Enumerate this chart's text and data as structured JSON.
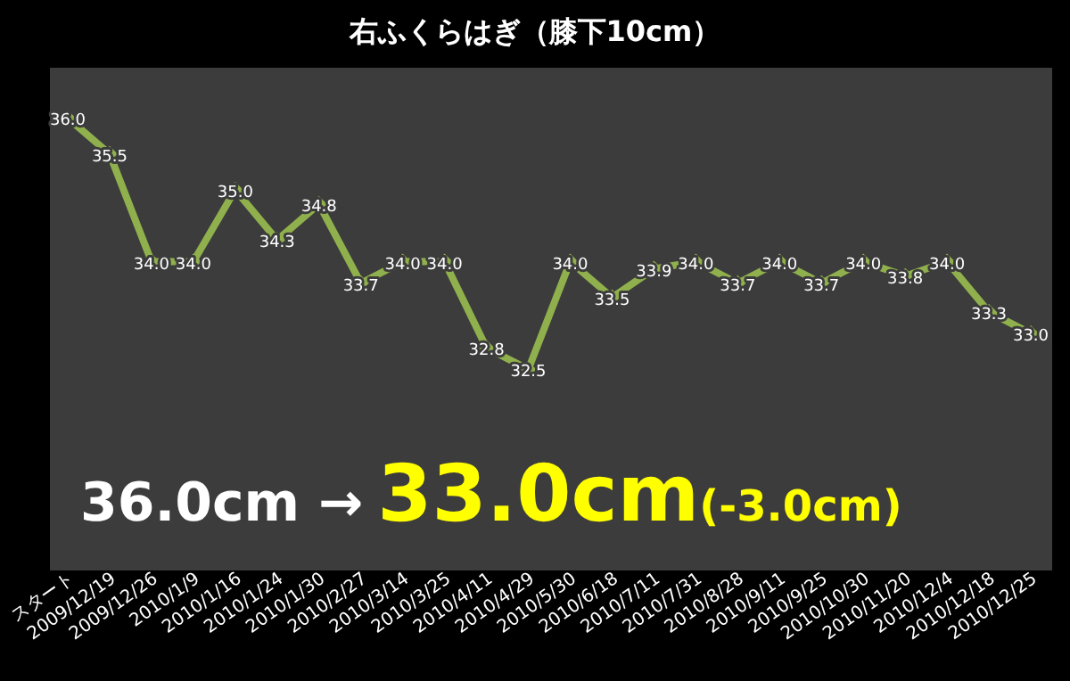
{
  "chart_data": {
    "type": "line",
    "title": "右ふくらはぎ（膝下10cm）",
    "categories": [
      "スタート",
      "2009/12/19",
      "2009/12/26",
      "2010/1/9",
      "2010/1/16",
      "2010/1/24",
      "2010/1/30",
      "2010/2/27",
      "2010/3/14",
      "2010/3/25",
      "2010/4/11",
      "2010/4/29",
      "2010/5/30",
      "2010/6/18",
      "2010/7/11",
      "2010/7/31",
      "2010/8/28",
      "2010/9/11",
      "2010/9/25",
      "2010/10/30",
      "2010/11/20",
      "2010/12/4",
      "2010/12/18",
      "2010/12/25"
    ],
    "series": [
      {
        "color": "#8fb04c",
        "values": [
          36.0,
          35.5,
          34.0,
          34.0,
          35.0,
          34.3,
          34.8,
          33.7,
          34.0,
          34.0,
          32.8,
          32.5,
          34.0,
          33.5,
          33.9,
          34.0,
          33.7,
          34.0,
          33.7,
          34.0,
          33.8,
          34.0,
          33.3,
          33.0
        ],
        "value_labels": [
          "36.0",
          "35.5",
          "34.0",
          "34.0",
          "35.0",
          "34.3",
          "34.8",
          "33.7",
          "34.0",
          "34.0",
          "32.8",
          "32.5",
          "34.0",
          "33.5",
          "33.9",
          "34.0",
          "33.7",
          "34.0",
          "33.7",
          "34.0",
          "33.8",
          "34.0",
          "33.3",
          "33.0"
        ]
      }
    ],
    "annotations": [
      "36.0cm →",
      "33.0cm",
      "(-3.0cm)"
    ],
    "marker": "diamond",
    "line_style": "solid",
    "grid": false
  }
}
